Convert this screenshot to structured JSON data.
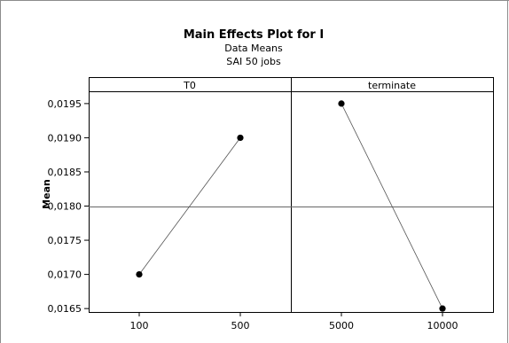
{
  "chart_data": {
    "type": "line",
    "title": "Main Effects Plot for I",
    "subtitles": [
      "Data Means",
      "SAI 50 jobs"
    ],
    "ylabel": "Mean",
    "ylim": [
      0.01645,
      0.01968
    ],
    "yticks": [
      0.0165,
      0.017,
      0.0175,
      0.018,
      0.0185,
      0.019,
      0.0195
    ],
    "ytick_labels": [
      "0,0165",
      "0,0170",
      "0,0175",
      "0,0180",
      "0,0185",
      "0,0190",
      "0,0195"
    ],
    "reference_line": 0.018,
    "panels": [
      {
        "label": "T0",
        "categories": [
          "100",
          "500"
        ],
        "values": [
          0.017,
          0.019
        ]
      },
      {
        "label": "terminate",
        "categories": [
          "5000",
          "10000"
        ],
        "values": [
          0.0195,
          0.0165
        ]
      }
    ]
  }
}
